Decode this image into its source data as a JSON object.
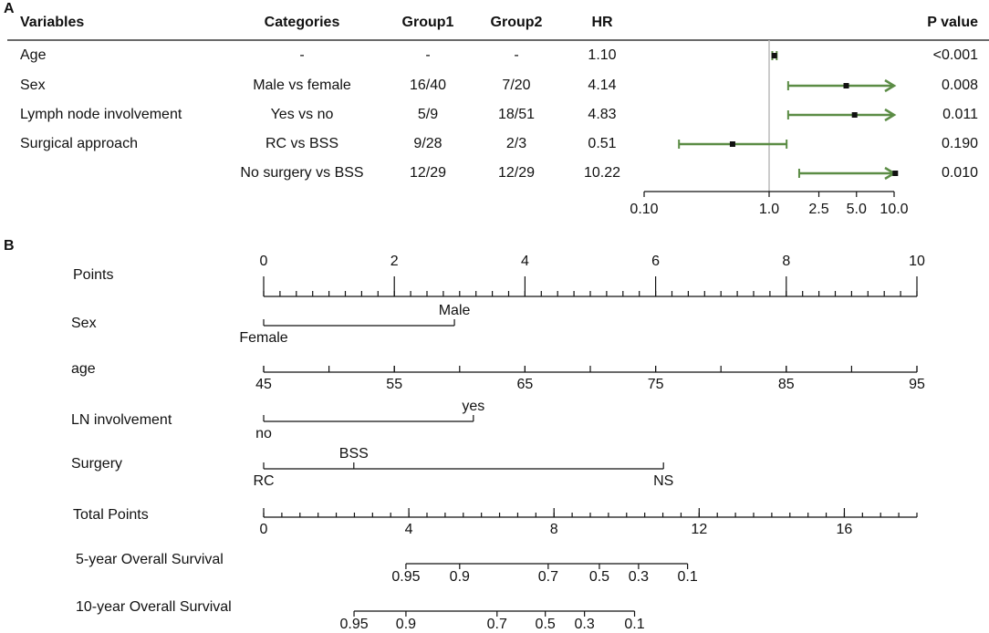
{
  "panel_a": {
    "label": "A",
    "headers": [
      "Variables",
      "Categories",
      "Group1",
      "Group2",
      "HR",
      "P value"
    ],
    "rows": [
      {
        "variable": "Age",
        "category": "-",
        "group1": "-",
        "group2": "-",
        "p": "<0.001"
      },
      {
        "variable": "Sex",
        "category": "Male vs female",
        "group1": "16/40",
        "group2": "7/20",
        "p": "0.008"
      },
      {
        "variable": "Lymph node involvement",
        "category": "Yes vs no",
        "group1": "5/9",
        "group2": "18/51",
        "p": "0.011"
      },
      {
        "variable": "Surgical approach",
        "category": "RC vs BSS",
        "group1": "9/28",
        "group2": "2/3",
        "p": "0.190"
      },
      {
        "variable": null,
        "category": "No surgery vs BSS",
        "group1": "12/29",
        "group2": "12/29",
        "p": "0.010"
      }
    ],
    "forest": {
      "type": "forest",
      "x_scale": "log",
      "xlim": [
        0.1,
        10
      ],
      "xticks": [
        {
          "value": 0.1,
          "label": "0.10"
        },
        {
          "value": 1,
          "label": "1.0"
        },
        {
          "value": 2.5,
          "label": "2.5"
        },
        {
          "value": 5,
          "label": "5.0"
        },
        {
          "value": 10,
          "label": "10.0"
        }
      ],
      "ref_line": 1,
      "hr": [
        1.1,
        4.14,
        4.83,
        0.51,
        10.22
      ],
      "value_labels": [
        "1.10",
        "4.14",
        "4.83",
        "0.51",
        "10.22"
      ],
      "ci_low": [
        1.06,
        1.42,
        1.42,
        0.19,
        1.74
      ],
      "ci_high": [
        1.15,
        null,
        null,
        1.38,
        null
      ],
      "color": "#5b8c45"
    }
  },
  "panel_b": {
    "label": "B",
    "points": {
      "name": "Points",
      "range": [
        0,
        10
      ],
      "ticks": [
        0,
        2,
        4,
        6,
        8,
        10
      ],
      "minor_step": 0.25
    },
    "variables": [
      {
        "name": "Sex",
        "levels": [
          {
            "label": "Female",
            "points": 0
          },
          {
            "label": "Male",
            "points": 2.92
          }
        ]
      },
      {
        "name": "age",
        "range": [
          45,
          95
        ],
        "points_range": [
          0,
          10
        ],
        "ticks": [
          45,
          55,
          65,
          75,
          85,
          95
        ],
        "minor_step": 5
      },
      {
        "name": "LN involvement",
        "levels": [
          {
            "label": "no",
            "points": 0
          },
          {
            "label": "yes",
            "points": 3.21
          }
        ]
      },
      {
        "name": "Surgery",
        "levels": [
          {
            "label": "RC",
            "points": 0
          },
          {
            "label": "BSS",
            "points": 1.38
          },
          {
            "label": "NS",
            "points": 6.12
          }
        ]
      }
    ],
    "total_points": {
      "name": "Total Points",
      "range": [
        0,
        18
      ],
      "ticks": [
        0,
        4,
        8,
        12,
        16
      ],
      "minor_step": 0.5
    },
    "survival": [
      {
        "name": "5-year Overall Survival",
        "ticks": [
          {
            "value": 0.95,
            "total_points": 3.92
          },
          {
            "value": 0.9,
            "total_points": 5.4
          },
          {
            "value": 0.7,
            "total_points": 7.84
          },
          {
            "value": 0.5,
            "total_points": 9.25
          },
          {
            "value": 0.3,
            "total_points": 10.33
          },
          {
            "value": 0.1,
            "total_points": 11.68
          }
        ]
      },
      {
        "name": "10-year Overall Survival",
        "ticks": [
          {
            "value": 0.95,
            "total_points": 2.49
          },
          {
            "value": 0.9,
            "total_points": 3.92
          },
          {
            "value": 0.7,
            "total_points": 6.43
          },
          {
            "value": 0.5,
            "total_points": 7.76
          },
          {
            "value": 0.3,
            "total_points": 8.84
          },
          {
            "value": 0.1,
            "total_points": 10.22
          }
        ]
      }
    ]
  }
}
